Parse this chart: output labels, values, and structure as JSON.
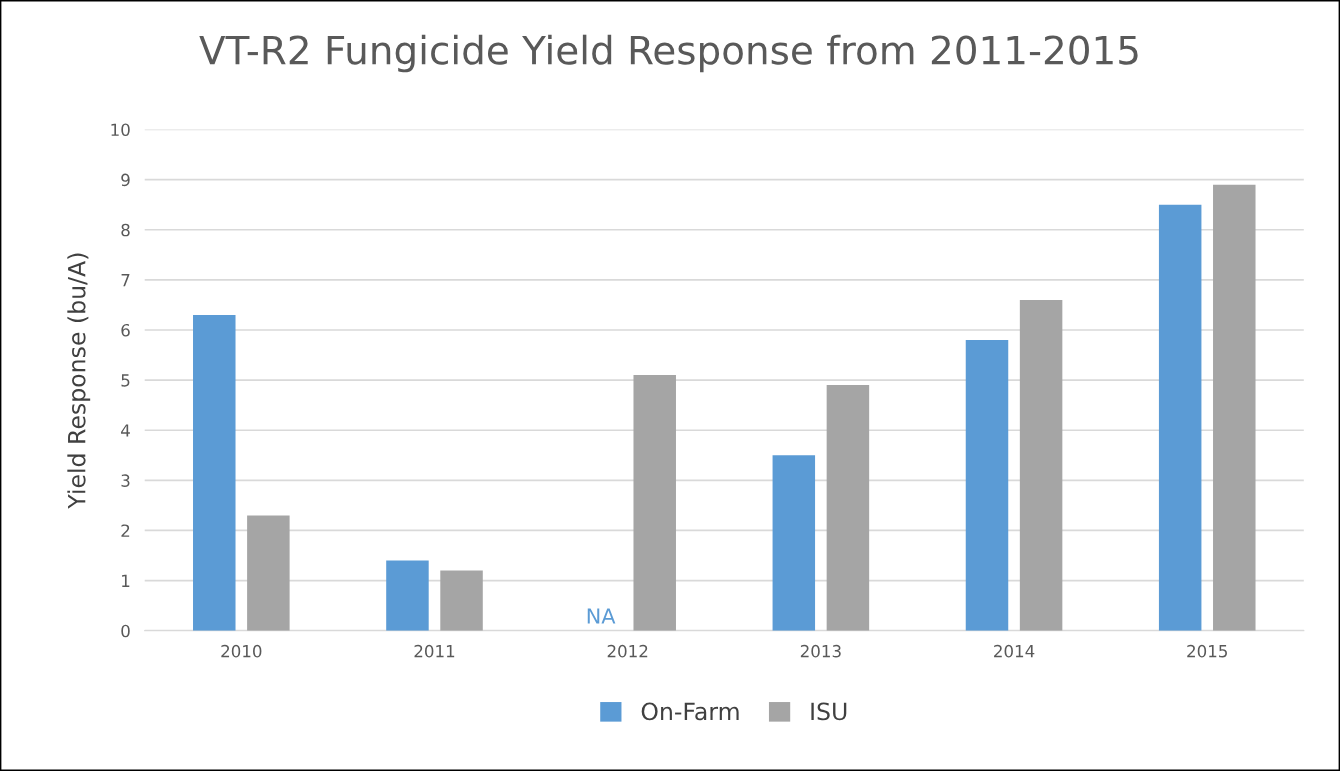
{
  "chart_data": {
    "type": "bar",
    "title": "VT-R2 Fungicide Yield Response from 2011-2015",
    "ylabel": "Yield Response (bu/A)",
    "categories": [
      "2010",
      "2011",
      "2012",
      "2013",
      "2014",
      "2015"
    ],
    "series": [
      {
        "name": "On-Farm",
        "color": "#5b9bd5",
        "values": [
          6.3,
          1.4,
          null,
          3.5,
          5.8,
          8.5
        ]
      },
      {
        "name": "ISU",
        "color": "#a5a5a5",
        "values": [
          2.3,
          1.2,
          5.1,
          4.9,
          6.6,
          8.9
        ]
      }
    ],
    "annotations": [
      "NA"
    ],
    "ylim": [
      0,
      10
    ],
    "yticks": [
      0,
      1,
      2,
      3,
      4,
      5,
      6,
      7,
      8,
      9,
      10
    ],
    "grid": "y",
    "legend": "bottom"
  }
}
